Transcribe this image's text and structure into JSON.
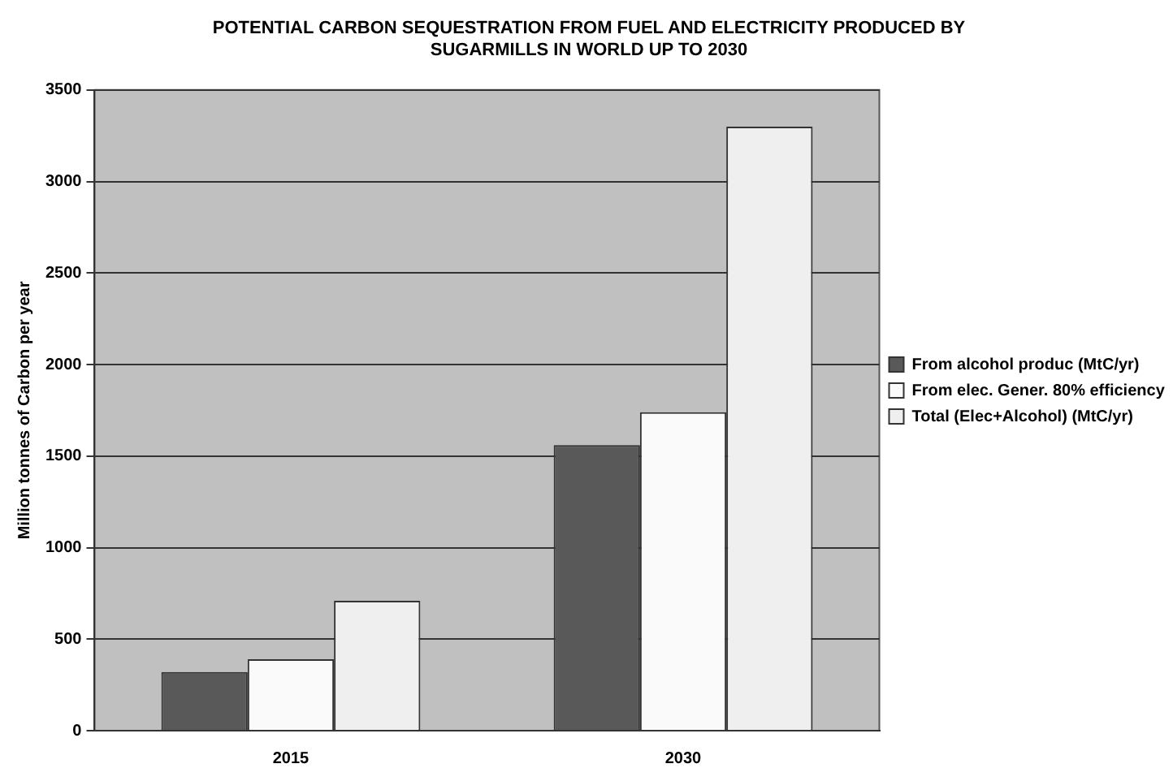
{
  "chart_data": {
    "type": "bar",
    "title": [
      "POTENTIAL CARBON SEQUESTRATION FROM FUEL AND ELECTRICITY PRODUCED BY",
      "SUGARMILLS IN WORLD UP TO 2030"
    ],
    "ylabel": "Million tonnes of Carbon per year",
    "categories": [
      "2015",
      "2030"
    ],
    "series": [
      {
        "name": "From alcohol produc (MtC/yr)",
        "color": "#595959",
        "values": [
          320,
          1560
        ]
      },
      {
        "name": "From elec. Gener. 80% efficiency",
        "color": "#fafafa",
        "values": [
          390,
          1740
        ]
      },
      {
        "name": "Total (Elec+Alcohol) (MtC/yr)",
        "color": "#efefef",
        "values": [
          710,
          3300
        ]
      }
    ],
    "ylim": [
      0,
      3500
    ],
    "yticks": [
      0,
      500,
      1000,
      1500,
      2000,
      2500,
      3000,
      3500
    ],
    "grid": "y",
    "legend": "right"
  }
}
